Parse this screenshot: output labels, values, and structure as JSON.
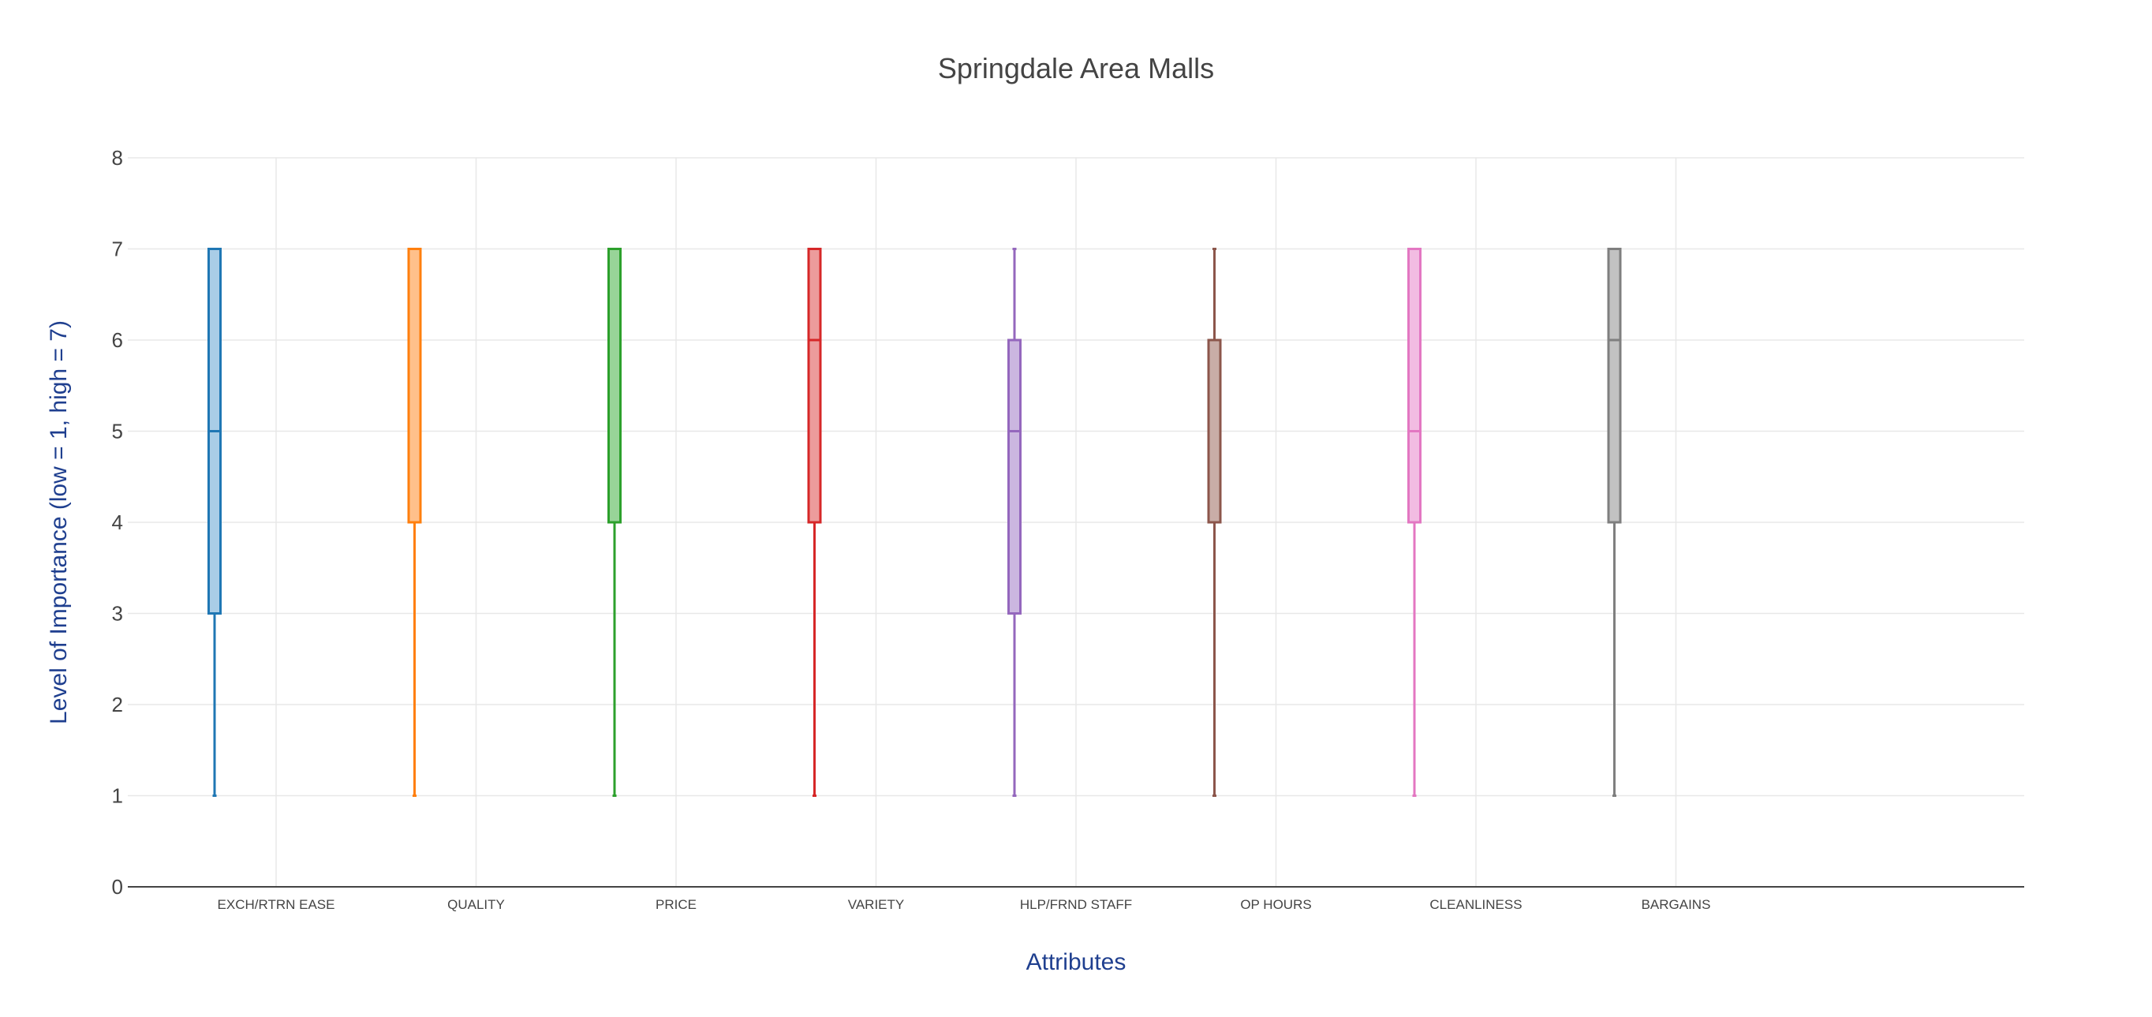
{
  "chart_data": {
    "type": "box",
    "title": "Springdale Area Malls",
    "xlabel": "Attributes",
    "ylabel": "Level of Importance (low = 1, high = 7)",
    "ylim": [
      0,
      8
    ],
    "yticks": [
      0,
      1,
      2,
      3,
      4,
      5,
      6,
      7,
      8
    ],
    "grid": true,
    "legend": "none",
    "categories": [
      "EXCH/RTRN EASE",
      "QUALITY",
      "PRICE",
      "VARIETY",
      "HLP/FRND STAFF",
      "OP HOURS",
      "CLEANLINESS",
      "BARGAINS"
    ],
    "series": [
      {
        "min": 1,
        "q1": 3,
        "median": 5,
        "q3": 7,
        "max": 7,
        "color": "#1f77b4",
        "fill": "#a9cde7"
      },
      {
        "min": 1,
        "q1": 4,
        "median": 7,
        "q3": 7,
        "max": 7,
        "color": "#ff7f0e",
        "fill": "#ffc08b"
      },
      {
        "min": 1,
        "q1": 4,
        "median": 7,
        "q3": 7,
        "max": 7,
        "color": "#2ca02c",
        "fill": "#98d498"
      },
      {
        "min": 1,
        "q1": 4,
        "median": 6,
        "q3": 7,
        "max": 7,
        "color": "#d62728",
        "fill": "#ec9c9c"
      },
      {
        "min": 1,
        "q1": 3,
        "median": 5,
        "q3": 6,
        "max": 7,
        "color": "#9467bd",
        "fill": "#cbb6e0"
      },
      {
        "min": 1,
        "q1": 4,
        "median": 6,
        "q3": 6,
        "max": 7,
        "color": "#8c564b",
        "fill": "#c9ada7"
      },
      {
        "min": 1,
        "q1": 4,
        "median": 5,
        "q3": 7,
        "max": 7,
        "color": "#e377c2",
        "fill": "#f2bce2"
      },
      {
        "min": 1,
        "q1": 4,
        "median": 6,
        "q3": 7,
        "max": 7,
        "color": "#7f7f7f",
        "fill": "#c2c2c2"
      }
    ]
  }
}
